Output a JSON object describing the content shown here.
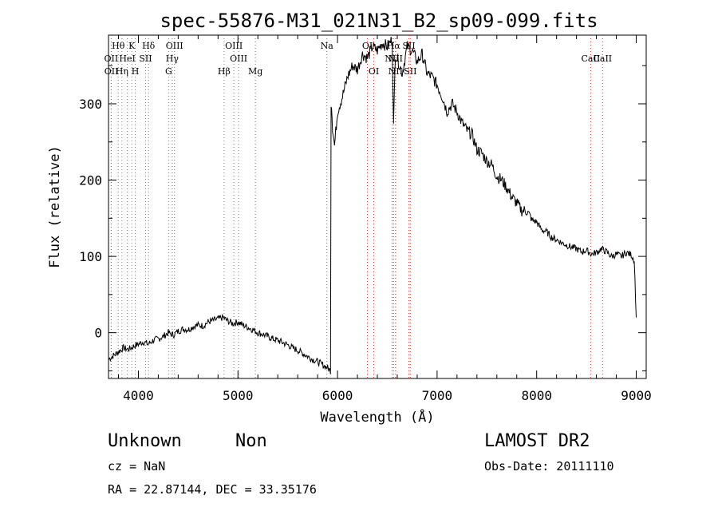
{
  "chart_data": {
    "type": "line",
    "title": "spec-55876-M31_021N31_B2_sp09-099.fits",
    "xlabel": "Wavelength (Å)",
    "ylabel": "Flux (relative)",
    "xlim": [
      3700,
      9100
    ],
    "ylim": [
      -60,
      390
    ],
    "xticks": [
      "4000",
      "5000",
      "6000",
      "7000",
      "8000",
      "9000"
    ],
    "yticks": [
      "0",
      "100",
      "200",
      "300"
    ],
    "series": [
      {
        "x": [
          3700,
          3750,
          3800,
          3850,
          3900,
          3950,
          4000,
          4050,
          4100,
          4150,
          4200,
          4250,
          4300,
          4350,
          4400,
          4450,
          4500,
          4550,
          4600,
          4650,
          4700,
          4750,
          4800,
          4850,
          4900,
          4950,
          5000,
          5050,
          5100,
          5150,
          5200,
          5250,
          5300,
          5350,
          5400,
          5450,
          5500,
          5550,
          5600,
          5650,
          5700,
          5750,
          5800,
          5850,
          5900,
          5930,
          5940,
          5950,
          5970,
          6000,
          6050,
          6100,
          6150,
          6200,
          6250,
          6300,
          6350,
          6400,
          6450,
          6500,
          6550,
          6563,
          6580,
          6600,
          6650,
          6700,
          6750,
          6800,
          6850,
          6900,
          6950,
          7000,
          7050,
          7100,
          7150,
          7200,
          7250,
          7300,
          7350,
          7400,
          7450,
          7500,
          7550,
          7600,
          7650,
          7700,
          7750,
          7800,
          7850,
          7900,
          7950,
          8000,
          8050,
          8100,
          8150,
          8200,
          8250,
          8300,
          8350,
          8400,
          8450,
          8500,
          8550,
          8600,
          8650,
          8700,
          8750,
          8800,
          8850,
          8900,
          8950,
          8980,
          9000
        ],
        "y": [
          -35,
          -30,
          -25,
          -20,
          -22,
          -18,
          -15,
          -12,
          -15,
          -10,
          -8,
          -5,
          0,
          -3,
          2,
          5,
          4,
          8,
          10,
          9,
          14,
          16,
          18,
          20,
          15,
          12,
          14,
          10,
          7,
          4,
          0,
          -2,
          -5,
          -8,
          -10,
          -13,
          -16,
          -20,
          -23,
          -27,
          -31,
          -35,
          -38,
          -42,
          -46,
          -50,
          300,
          270,
          245,
          290,
          310,
          335,
          350,
          345,
          365,
          360,
          375,
          370,
          380,
          375,
          385,
          270,
          365,
          360,
          340,
          375,
          370,
          355,
          365,
          340,
          335,
          325,
          310,
          290,
          300,
          290,
          275,
          265,
          260,
          240,
          235,
          225,
          220,
          205,
          200,
          190,
          178,
          170,
          160,
          160,
          148,
          145,
          135,
          132,
          125,
          122,
          118,
          115,
          112,
          110,
          106,
          108,
          103,
          105,
          110,
          106,
          100,
          103,
          100,
          105,
          102,
          95,
          20
        ]
      }
    ],
    "lines": [
      {
        "label": "Hθ",
        "x": 3798
      },
      {
        "label": "K",
        "x": 3934
      },
      {
        "label": "Hδ",
        "x": 4102
      },
      {
        "label": "OIII",
        "x": 4363
      },
      {
        "label": "OIII",
        "x": 4959
      },
      {
        "label": "Na",
        "x": 5893
      },
      {
        "label": "OI",
        "x": 6300
      },
      {
        "label": "Hα",
        "x": 6563
      },
      {
        "label": "SII",
        "x": 6717
      },
      {
        "label": "CaII",
        "x": 8662
      },
      {
        "label": "OII",
        "x": 3727
      },
      {
        "label": "HeI",
        "x": 3889
      },
      {
        "label": "SII",
        "x": 4072
      },
      {
        "label": "Hγ",
        "x": 4340
      },
      {
        "label": "OIII",
        "x": 5007
      },
      {
        "label": "NII",
        "x": 6548
      },
      {
        "label": "NII",
        "x": 6583
      },
      {
        "label": "CaII",
        "x": 8542
      },
      {
        "label": "OII",
        "x": 3729
      },
      {
        "label": "Hη",
        "x": 3835
      },
      {
        "label": "H",
        "x": 3969
      },
      {
        "label": "G",
        "x": 4304
      },
      {
        "label": "Hβ",
        "x": 4861
      },
      {
        "label": "Mg",
        "x": 5175
      },
      {
        "label": "OI",
        "x": 6364
      },
      {
        "label": "NII",
        "x": 6583
      },
      {
        "label": "SII",
        "x": 6731
      }
    ]
  },
  "info": {
    "class": "Unknown",
    "subclass": "Non",
    "survey": "LAMOST DR2",
    "cz": "cz = NaN",
    "obs_date": "Obs-Date: 20111110",
    "coords": "RA =  22.87144, DEC =  33.35176"
  }
}
